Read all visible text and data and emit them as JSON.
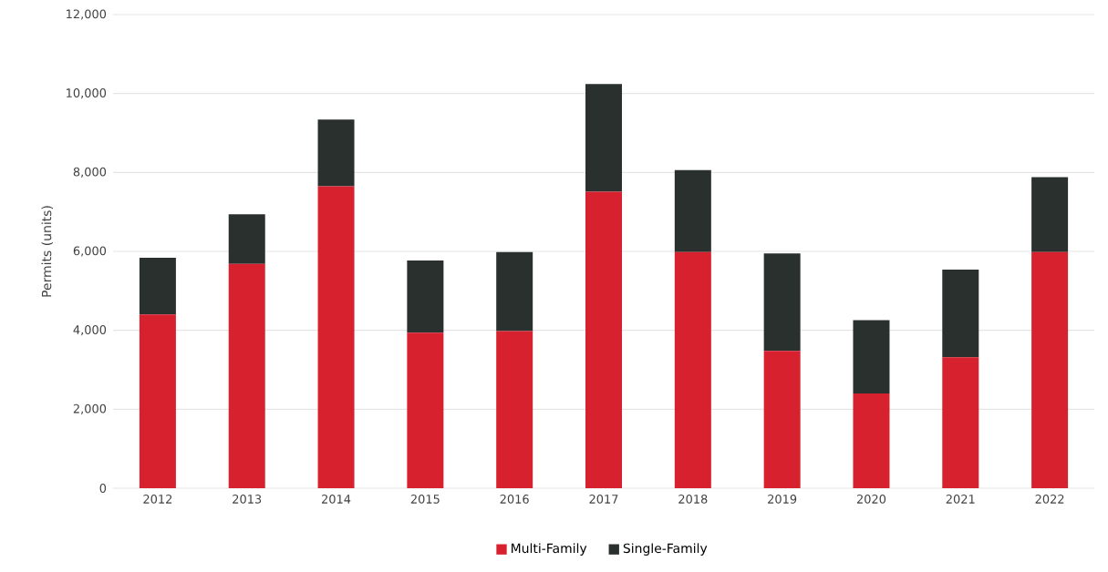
{
  "chart_data": {
    "type": "bar",
    "stacked": true,
    "ylabel": "Permits (units)",
    "categories": [
      "2012",
      "2013",
      "2014",
      "2015",
      "2016",
      "2017",
      "2018",
      "2019",
      "2020",
      "2021",
      "2022"
    ],
    "series": [
      {
        "name": "Multi-Family",
        "color": "#d7212f",
        "values": [
          4400,
          5680,
          7650,
          3940,
          3980,
          7510,
          5980,
          3480,
          2400,
          3320,
          5980
        ]
      },
      {
        "name": "Single-Family",
        "color": "#2a302d",
        "values": [
          1440,
          1260,
          1690,
          1830,
          2000,
          2730,
          2080,
          2470,
          1860,
          2220,
          1900
        ]
      }
    ],
    "ylim": [
      0,
      12000
    ],
    "yticks": [
      0,
      {
        "value": 2000,
        "label": "2,000"
      },
      {
        "value": 4000,
        "label": "4,000"
      },
      {
        "value": 6000,
        "label": "6,000"
      },
      {
        "value": 8000,
        "label": "8,000"
      },
      {
        "value": 10000,
        "label": "10,000"
      },
      {
        "value": 12000,
        "label": "12,000"
      }
    ],
    "grid": "y",
    "legend": "bottom"
  }
}
